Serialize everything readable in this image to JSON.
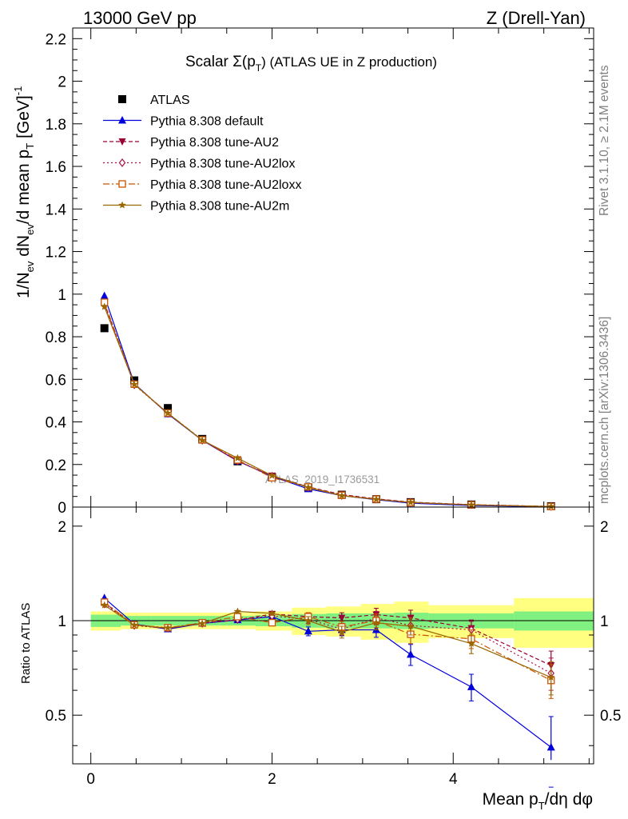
{
  "header": {
    "energy_label": "13000 GeV pp",
    "process_label": "Z (Drell-Yan)"
  },
  "side_labels": {
    "rivet": "Rivet 3.1.10, ≥ 2.1M events",
    "mcplots": "mcplots.cern.ch [arXiv:1306.3436]"
  },
  "chart_data": {
    "type": "scatter",
    "title": "Scalar Σ(pT) (ATLAS UE in Z production)",
    "title_parts": {
      "prefix": "Scalar Σ(p",
      "sub": "T",
      "suffix": ") (ATLAS UE in Z production)"
    },
    "analysis_tag": "ATLAS_2019_I1736531",
    "xlabel": "Mean pT/dη dφ",
    "xlabel_parts": {
      "a": "Mean p",
      "sub": "T",
      "b": "/dη dφ"
    },
    "ylabel": "1/Nev dNev/d mean pT [GeV]⁻¹",
    "ylabel_parts": {
      "a": "1/N",
      "sub1": "ev",
      "b": " dN",
      "sub2": "ev",
      "c": "/d mean p",
      "sub3": "T",
      "d": " [GeV]",
      "sup": "-1"
    },
    "ratio_ylabel": "Ratio to ATLAS",
    "xlim": [
      -0.2,
      5.55
    ],
    "ylim": [
      0,
      2.25
    ],
    "ratio_ylim": [
      0.35,
      2.3
    ],
    "x_ticks": [
      0,
      2,
      4
    ],
    "x_tick_labels": [
      "0",
      "2",
      "4"
    ],
    "y_ticks": [
      0,
      0.2,
      0.4,
      0.6,
      0.8,
      1,
      1.2,
      1.4,
      1.6,
      1.8,
      2,
      2.2
    ],
    "y_tick_labels": [
      "0",
      "0.2",
      "0.4",
      "0.6",
      "0.8",
      "1",
      "1.2",
      "1.4",
      "1.6",
      "1.8",
      "2",
      "2.2"
    ],
    "ratio_ticks": [
      0.5,
      1,
      2
    ],
    "ratio_tick_labels": [
      "0.5",
      "1",
      "2"
    ],
    "legend_position": "top-left",
    "bin_edges": [
      0,
      0.33,
      0.67,
      1.03,
      1.42,
      1.82,
      2.22,
      2.6,
      2.98,
      3.35,
      3.73,
      4.67,
      5.55
    ],
    "band_inner": [
      0.045,
      0.035,
      0.035,
      0.035,
      0.035,
      0.04,
      0.05,
      0.055,
      0.055,
      0.06,
      0.055,
      0.07
    ],
    "band_outer": [
      0.07,
      0.06,
      0.06,
      0.06,
      0.06,
      0.07,
      0.1,
      0.11,
      0.13,
      0.15,
      0.12,
      0.18
    ],
    "x": [
      0.15,
      0.48,
      0.85,
      1.23,
      1.62,
      2.0,
      2.4,
      2.77,
      3.15,
      3.53,
      4.2,
      5.08
    ],
    "series": [
      {
        "name": "ATLAS",
        "color": "#000000",
        "marker": "square-filled",
        "dash": "none",
        "values": [
          0.84,
          0.595,
          0.465,
          0.32,
          0.215,
          0.14,
          0.092,
          0.058,
          0.037,
          0.023,
          0.012,
          0.004
        ]
      },
      {
        "name": "Pythia 8.308 default",
        "color": "#0000dd",
        "marker": "triangle-up-filled",
        "dash": "none",
        "ratio": [
          1.18,
          0.975,
          0.94,
          0.98,
          1.005,
          1.03,
          0.925,
          0.935,
          0.935,
          0.78,
          0.615,
          0.395
        ],
        "ratio_err": [
          0.015,
          0.01,
          0.01,
          0.015,
          0.02,
          0.02,
          0.03,
          0.04,
          0.05,
          0.06,
          0.06,
          0.1
        ]
      },
      {
        "name": "Pythia 8.308 tune-AU2",
        "color": "#990033",
        "marker": "triangle-down-filled",
        "dash": "5,3",
        "ratio": [
          1.14,
          0.97,
          0.945,
          0.985,
          1.005,
          1.05,
          1.03,
          1.02,
          1.045,
          1.02,
          0.945,
          0.72
        ],
        "ratio_err": [
          0.015,
          0.01,
          0.01,
          0.015,
          0.02,
          0.02,
          0.03,
          0.04,
          0.05,
          0.06,
          0.06,
          0.08
        ]
      },
      {
        "name": "Pythia 8.308 tune-AU2lox",
        "color": "#aa1144",
        "marker": "diamond-open",
        "dash": "2,3",
        "ratio": [
          1.13,
          0.965,
          0.945,
          0.98,
          1.01,
          1.035,
          1.01,
          0.94,
          1.02,
          0.965,
          0.935,
          0.68
        ],
        "ratio_err": [
          0.015,
          0.01,
          0.01,
          0.015,
          0.02,
          0.02,
          0.03,
          0.04,
          0.05,
          0.06,
          0.06,
          0.08
        ]
      },
      {
        "name": "Pythia 8.308 tune-AU2loxx",
        "color": "#cc5500",
        "marker": "square-open",
        "dash": "8,3,2,3",
        "ratio": [
          1.145,
          0.97,
          0.95,
          0.985,
          1.03,
          0.985,
          1.03,
          0.955,
          1.0,
          0.905,
          0.875,
          0.645
        ],
        "ratio_err": [
          0.015,
          0.01,
          0.01,
          0.015,
          0.02,
          0.02,
          0.03,
          0.04,
          0.05,
          0.06,
          0.06,
          0.08
        ]
      },
      {
        "name": "Pythia 8.308 tune-AU2m",
        "color": "#996600",
        "marker": "star-filled",
        "dash": "none",
        "ratio": [
          1.12,
          0.968,
          0.948,
          0.98,
          1.07,
          1.055,
          1.0,
          0.92,
          0.985,
          0.96,
          0.845,
          0.66
        ],
        "ratio_err": [
          0.015,
          0.01,
          0.01,
          0.015,
          0.02,
          0.02,
          0.03,
          0.04,
          0.05,
          0.06,
          0.06,
          0.08
        ]
      }
    ]
  }
}
